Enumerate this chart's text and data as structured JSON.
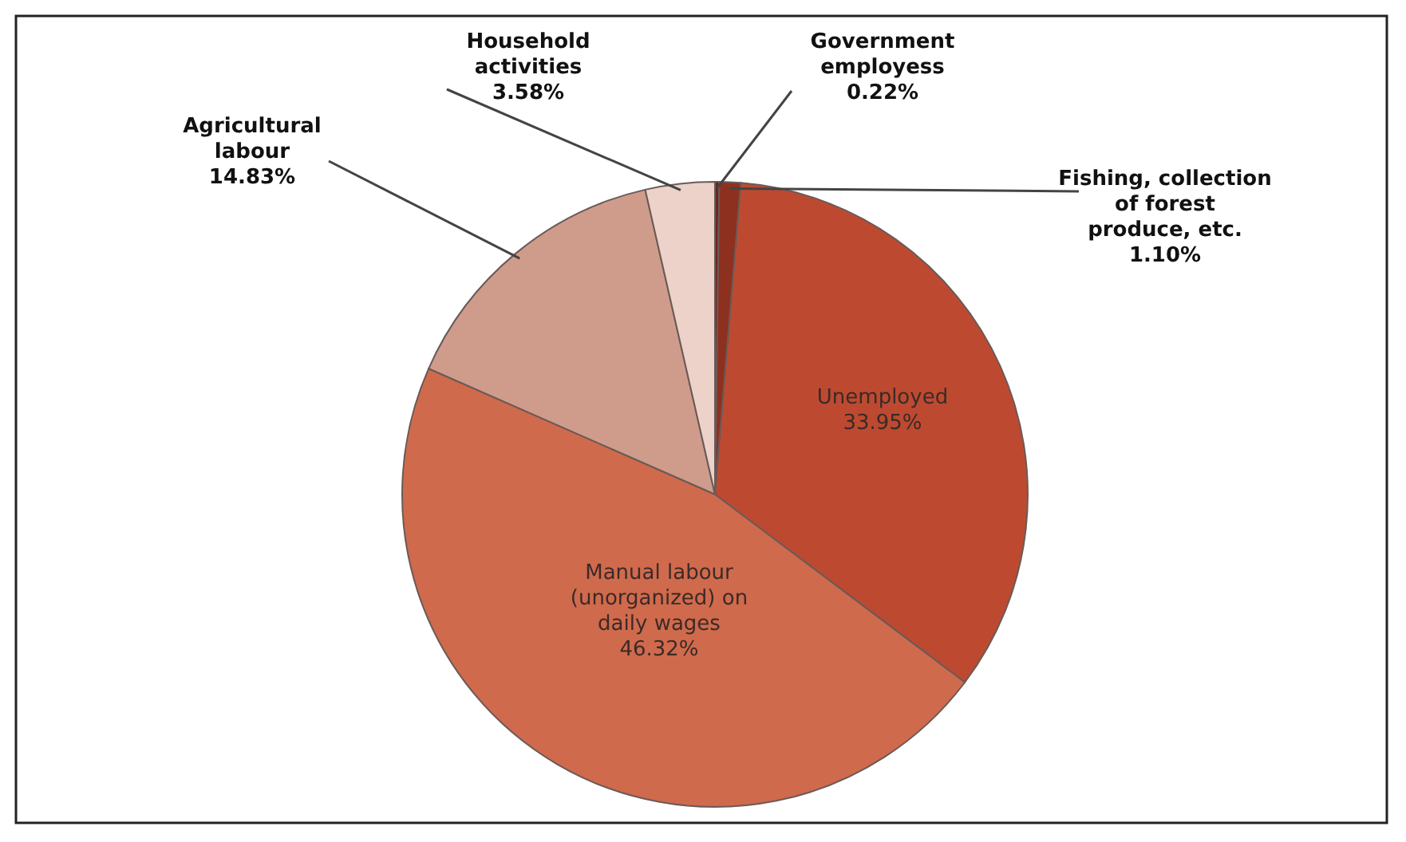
{
  "chart_data": {
    "type": "pie",
    "categories": [
      "Government\nemployess",
      "Fishing, collection\nof forest\nproduce, etc.",
      "Unemployed",
      "Manual labour\n(unorganized) on\ndaily wages",
      "Agricultural\nlabour",
      "Household\nactivities"
    ],
    "values": [
      0.22,
      1.1,
      33.95,
      46.32,
      14.83,
      3.58
    ],
    "value_labels": [
      "0.22%",
      "1.10%",
      "33.95%",
      "46.32%",
      "14.83%",
      "3.58%"
    ],
    "colors": [
      "#6e2418",
      "#8e3020",
      "#bd4a30",
      "#d06a4c",
      "#cf9c8c",
      "#ecd2c8"
    ]
  }
}
